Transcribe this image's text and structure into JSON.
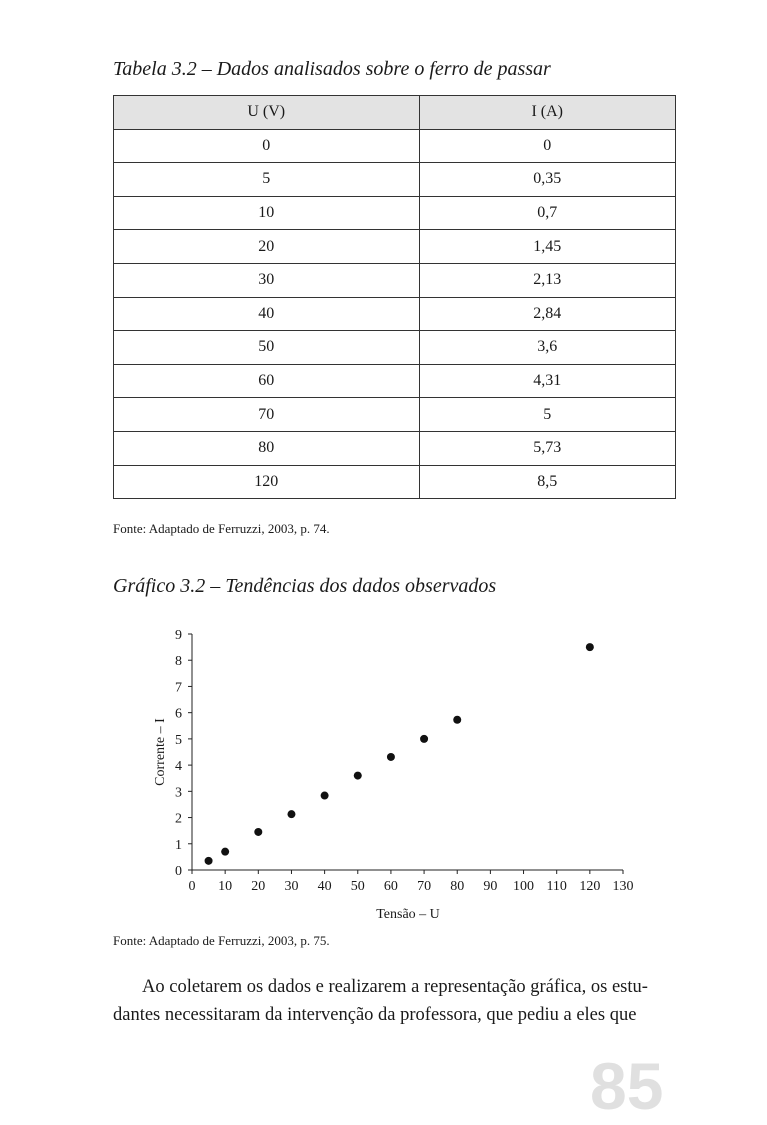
{
  "table_caption": "Tabela 3.2 – Dados analisados sobre o ferro de passar",
  "table": {
    "headers": [
      "U (V)",
      "I (A)"
    ],
    "rows": [
      [
        "0",
        "0"
      ],
      [
        "5",
        "0,35"
      ],
      [
        "10",
        "0,7"
      ],
      [
        "20",
        "1,45"
      ],
      [
        "30",
        "2,13"
      ],
      [
        "40",
        "2,84"
      ],
      [
        "50",
        "3,6"
      ],
      [
        "60",
        "4,31"
      ],
      [
        "70",
        "5"
      ],
      [
        "80",
        "5,73"
      ],
      [
        "120",
        "8,5"
      ]
    ]
  },
  "table_source": "Fonte: Adaptado de Ferruzzi, 2003, p. 74.",
  "chart_caption": "Gráfico 3.2 – Tendências dos dados observados",
  "chart_data": {
    "type": "scatter",
    "title": "Gráfico 3.2 – Tendências dos dados observados",
    "xlabel": "Tensão – U",
    "ylabel": "Corrente – I",
    "xlim": [
      0,
      130
    ],
    "ylim": [
      0,
      9
    ],
    "x_ticks": [
      0,
      10,
      20,
      30,
      40,
      50,
      60,
      70,
      80,
      90,
      100,
      110,
      120,
      130
    ],
    "y_ticks": [
      0,
      1,
      2,
      3,
      4,
      5,
      6,
      7,
      8,
      9
    ],
    "grid": false,
    "series": [
      {
        "x": [
          5,
          10,
          20,
          30,
          40,
          50,
          60,
          70,
          80,
          120
        ],
        "y": [
          0.35,
          0.7,
          1.45,
          2.13,
          2.84,
          3.6,
          4.31,
          5,
          5.73,
          8.5
        ]
      }
    ]
  },
  "chart_source": "Fonte: Adaptado de Ferruzzi, 2003, p. 75.",
  "paragraph": {
    "line1": "Ao coletarem os dados e realizarem a representação gráfica, os estu-",
    "line2": "dantes necessitaram da intervenção da professora, que pediu a eles que"
  },
  "page_number": "85"
}
